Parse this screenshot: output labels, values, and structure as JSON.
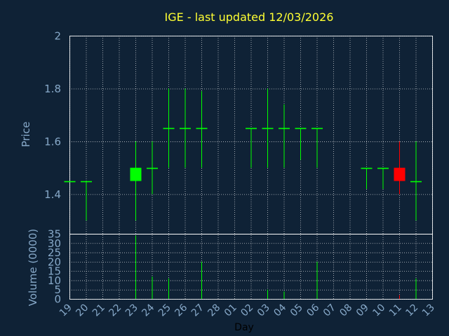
{
  "chart_data": {
    "type": "candlestick",
    "title": "IGE - last updated 12/03/2026",
    "xlabel": "Day",
    "price_ylabel": "Price",
    "volume_ylabel": "Volume (0000)",
    "price_ylim": [
      1.25,
      2.0
    ],
    "price_ticks": [
      "1.4",
      "1.6",
      "1.8",
      "2"
    ],
    "volume_ylim": [
      0,
      35
    ],
    "volume_ticks": [
      "0",
      "5",
      "10",
      "15",
      "20",
      "25",
      "30",
      "35"
    ],
    "x_tick_labels": [
      "19",
      "20",
      "21",
      "22",
      "23",
      "24",
      "25",
      "26",
      "27",
      "28",
      "01",
      "02",
      "03",
      "04",
      "05",
      "06",
      "07",
      "08",
      "09",
      "10",
      "11",
      "12",
      "13"
    ],
    "colors": {
      "up": "#00ff00",
      "down": "#ff0000",
      "flat": "#00ff00",
      "volume": "#00ff00"
    },
    "candles": [
      {
        "idx": 0,
        "open": 1.45,
        "high": 1.45,
        "low": 1.45,
        "close": 1.45,
        "volume": 0
      },
      {
        "idx": 1,
        "open": 1.45,
        "high": 1.45,
        "low": 1.3,
        "close": 1.45,
        "volume": 0
      },
      {
        "idx": 4,
        "open": 1.45,
        "high": 1.6,
        "low": 1.3,
        "close": 1.5,
        "volume": 34
      },
      {
        "idx": 5,
        "open": 1.5,
        "high": 1.6,
        "low": 1.4,
        "close": 1.5,
        "volume": 12
      },
      {
        "idx": 6,
        "open": 1.65,
        "high": 1.8,
        "low": 1.5,
        "close": 1.65,
        "volume": 11
      },
      {
        "idx": 7,
        "open": 1.65,
        "high": 1.8,
        "low": 1.5,
        "close": 1.65,
        "volume": 0
      },
      {
        "idx": 8,
        "open": 1.65,
        "high": 1.79,
        "low": 1.5,
        "close": 1.65,
        "volume": 20
      },
      {
        "idx": 11,
        "open": 1.65,
        "high": 1.65,
        "low": 1.5,
        "close": 1.65,
        "volume": 0
      },
      {
        "idx": 12,
        "open": 1.65,
        "high": 1.8,
        "low": 1.5,
        "close": 1.65,
        "volume": 5
      },
      {
        "idx": 13,
        "open": 1.65,
        "high": 1.74,
        "low": 1.5,
        "close": 1.65,
        "volume": 4
      },
      {
        "idx": 14,
        "open": 1.65,
        "high": 1.65,
        "low": 1.53,
        "close": 1.65,
        "volume": 0
      },
      {
        "idx": 15,
        "open": 1.65,
        "high": 1.65,
        "low": 1.5,
        "close": 1.65,
        "volume": 20
      },
      {
        "idx": 18,
        "open": 1.5,
        "high": 1.5,
        "low": 1.42,
        "close": 1.5,
        "volume": 0
      },
      {
        "idx": 19,
        "open": 1.5,
        "high": 1.5,
        "low": 1.42,
        "close": 1.5,
        "volume": 0
      },
      {
        "idx": 20,
        "open": 1.5,
        "high": 1.6,
        "low": 1.4,
        "close": 1.45,
        "volume": 2
      },
      {
        "idx": 21,
        "open": 1.45,
        "high": 1.6,
        "low": 1.3,
        "close": 1.45,
        "volume": 11
      }
    ]
  }
}
